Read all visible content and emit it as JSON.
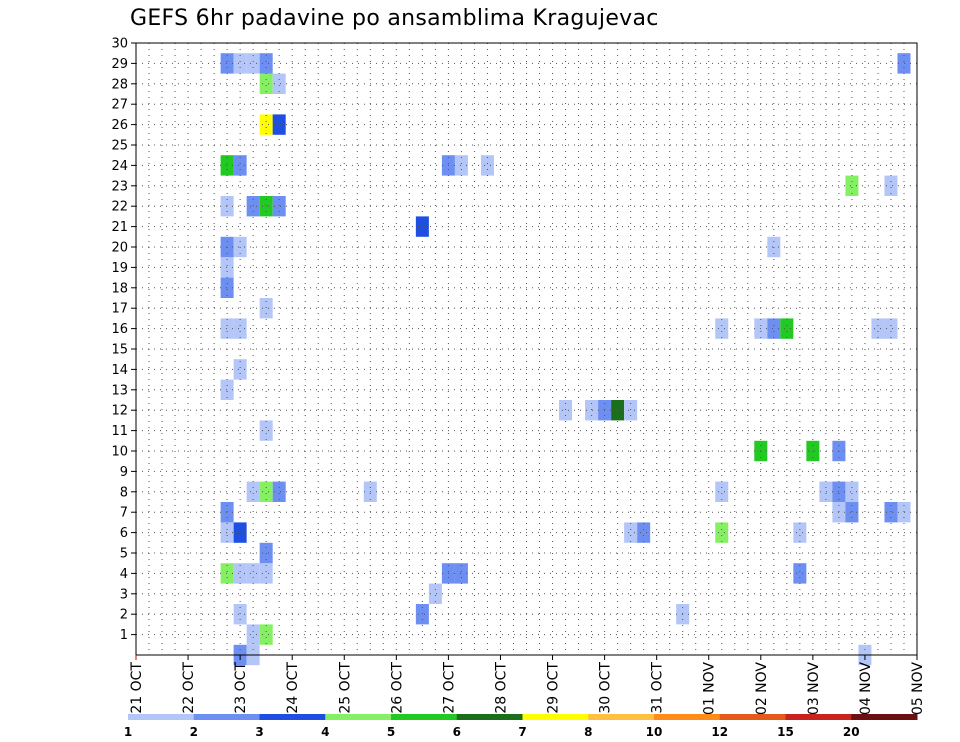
{
  "chart_data": {
    "type": "heatmap",
    "title": "GEFS 6hr padavine po ansamblima Kragujevac",
    "x_tick_labels": [
      "21 OCT",
      "22 OCT",
      "23 OCT",
      "24 OCT",
      "25 OCT",
      "26 OCT",
      "27 OCT",
      "28 OCT",
      "29 OCT",
      "30 OCT",
      "31 OCT",
      "01 NOV",
      "02 NOV",
      "03 NOV",
      "04 NOV",
      "05 NOV"
    ],
    "y_tick_labels": [
      "1",
      "2",
      "3",
      "4",
      "5",
      "6",
      "7",
      "8",
      "9",
      "10",
      "11",
      "12",
      "13",
      "14",
      "15",
      "16",
      "17",
      "18",
      "19",
      "20",
      "21",
      "22",
      "23",
      "24",
      "25",
      "26",
      "27",
      "28",
      "29",
      "30"
    ],
    "xlim": [
      0,
      60
    ],
    "ylim": [
      0,
      30
    ],
    "x_unit": "6-hour step starting 21 OCT 00Z",
    "y_unit": "ensemble member",
    "grid": true,
    "legend": {
      "placement": "bottom",
      "labels": [
        "1",
        "2",
        "3",
        "4",
        "5",
        "6",
        "7",
        "8",
        "10",
        "12",
        "15",
        "20"
      ],
      "colors": [
        "#b3c6f7",
        "#6d8ff1",
        "#1f4fe0",
        "#86f065",
        "#22c922",
        "#1b6f1b",
        "#ffff00",
        "#ffc040",
        "#ff8c1a",
        "#e55a1a",
        "#c8231e",
        "#6b0f10"
      ]
    },
    "color_levels": [
      {
        "min": 1,
        "color": "#b3c6f7"
      },
      {
        "min": 2,
        "color": "#6d8ff1"
      },
      {
        "min": 3,
        "color": "#1f4fe0"
      },
      {
        "min": 4,
        "color": "#86f065"
      },
      {
        "min": 5,
        "color": "#22c922"
      },
      {
        "min": 6,
        "color": "#1b6f1b"
      },
      {
        "min": 7,
        "color": "#ffff00"
      },
      {
        "min": 8,
        "color": "#ffc040"
      },
      {
        "min": 10,
        "color": "#ff8c1a"
      },
      {
        "min": 12,
        "color": "#e55a1a"
      },
      {
        "min": 15,
        "color": "#c8231e"
      },
      {
        "min": 20,
        "color": "#6b0f10"
      }
    ],
    "points": [
      {
        "x": 8,
        "y": 0,
        "v": 2.5
      },
      {
        "x": 9,
        "y": 0,
        "v": 1.5
      },
      {
        "x": 9,
        "y": 1,
        "v": 1.5
      },
      {
        "x": 10,
        "y": 1,
        "v": 4.5
      },
      {
        "x": 8,
        "y": 2,
        "v": 1.5
      },
      {
        "x": 22,
        "y": 2,
        "v": 2.5
      },
      {
        "x": 42,
        "y": 2,
        "v": 1.5
      },
      {
        "x": 23,
        "y": 3,
        "v": 1.5
      },
      {
        "x": 7,
        "y": 4,
        "v": 4.5
      },
      {
        "x": 8,
        "y": 4,
        "v": 1.5
      },
      {
        "x": 9,
        "y": 4,
        "v": 1.5
      },
      {
        "x": 10,
        "y": 4,
        "v": 1.5
      },
      {
        "x": 24,
        "y": 4,
        "v": 2.5
      },
      {
        "x": 25,
        "y": 4,
        "v": 2.5
      },
      {
        "x": 51,
        "y": 4,
        "v": 2.5
      },
      {
        "x": 10,
        "y": 5,
        "v": 2.5
      },
      {
        "x": 7,
        "y": 6,
        "v": 1.5
      },
      {
        "x": 8,
        "y": 6,
        "v": 3.5
      },
      {
        "x": 38,
        "y": 6,
        "v": 1.5
      },
      {
        "x": 39,
        "y": 6,
        "v": 2.5
      },
      {
        "x": 45,
        "y": 6,
        "v": 4.5
      },
      {
        "x": 51,
        "y": 6,
        "v": 1.5
      },
      {
        "x": 7,
        "y": 7,
        "v": 2.5
      },
      {
        "x": 54,
        "y": 7,
        "v": 1.5
      },
      {
        "x": 55,
        "y": 7,
        "v": 2.5
      },
      {
        "x": 58,
        "y": 7,
        "v": 2.5
      },
      {
        "x": 59,
        "y": 7,
        "v": 1.5
      },
      {
        "x": 9,
        "y": 8,
        "v": 1.5
      },
      {
        "x": 10,
        "y": 8,
        "v": 4.5
      },
      {
        "x": 11,
        "y": 8,
        "v": 2.5
      },
      {
        "x": 18,
        "y": 8,
        "v": 1.5
      },
      {
        "x": 45,
        "y": 8,
        "v": 1.5
      },
      {
        "x": 53,
        "y": 8,
        "v": 1.5
      },
      {
        "x": 54,
        "y": 8,
        "v": 2.5
      },
      {
        "x": 55,
        "y": 8,
        "v": 1.5
      },
      {
        "x": 48,
        "y": 10,
        "v": 5.5
      },
      {
        "x": 52,
        "y": 10,
        "v": 5.5
      },
      {
        "x": 54,
        "y": 10,
        "v": 2.5
      },
      {
        "x": 10,
        "y": 11,
        "v": 1.5
      },
      {
        "x": 33,
        "y": 12,
        "v": 1.5
      },
      {
        "x": 35,
        "y": 12,
        "v": 1.5
      },
      {
        "x": 36,
        "y": 12,
        "v": 2.5
      },
      {
        "x": 37,
        "y": 12,
        "v": 6.5
      },
      {
        "x": 38,
        "y": 12,
        "v": 1.5
      },
      {
        "x": 7,
        "y": 13,
        "v": 1.5
      },
      {
        "x": 8,
        "y": 14,
        "v": 1.5
      },
      {
        "x": 7,
        "y": 16,
        "v": 1.5
      },
      {
        "x": 8,
        "y": 16,
        "v": 1.5
      },
      {
        "x": 45,
        "y": 16,
        "v": 1.5
      },
      {
        "x": 48,
        "y": 16,
        "v": 1.5
      },
      {
        "x": 49,
        "y": 16,
        "v": 2.5
      },
      {
        "x": 50,
        "y": 16,
        "v": 5.5
      },
      {
        "x": 57,
        "y": 16,
        "v": 1.5
      },
      {
        "x": 58,
        "y": 16,
        "v": 1.5
      },
      {
        "x": 10,
        "y": 17,
        "v": 1.5
      },
      {
        "x": 7,
        "y": 18,
        "v": 2.5
      },
      {
        "x": 7,
        "y": 19,
        "v": 1.5
      },
      {
        "x": 7,
        "y": 20,
        "v": 2.5
      },
      {
        "x": 8,
        "y": 20,
        "v": 1.5
      },
      {
        "x": 49,
        "y": 20,
        "v": 1.5
      },
      {
        "x": 22,
        "y": 21,
        "v": 3.5
      },
      {
        "x": 7,
        "y": 22,
        "v": 1.5
      },
      {
        "x": 9,
        "y": 22,
        "v": 2.5
      },
      {
        "x": 10,
        "y": 22,
        "v": 5.5
      },
      {
        "x": 11,
        "y": 22,
        "v": 2.5
      },
      {
        "x": 55,
        "y": 23,
        "v": 4.5
      },
      {
        "x": 58,
        "y": 23,
        "v": 1.5
      },
      {
        "x": 7,
        "y": 24,
        "v": 5.5
      },
      {
        "x": 8,
        "y": 24,
        "v": 2.5
      },
      {
        "x": 24,
        "y": 24,
        "v": 2.5
      },
      {
        "x": 25,
        "y": 24,
        "v": 1.5
      },
      {
        "x": 27,
        "y": 24,
        "v": 1.5
      },
      {
        "x": 10,
        "y": 26,
        "v": 7.5
      },
      {
        "x": 11,
        "y": 26,
        "v": 3.5
      },
      {
        "x": 10,
        "y": 28,
        "v": 4.5
      },
      {
        "x": 11,
        "y": 28,
        "v": 1.5
      },
      {
        "x": 7,
        "y": 29,
        "v": 2.5
      },
      {
        "x": 8,
        "y": 29,
        "v": 1.5
      },
      {
        "x": 9,
        "y": 29,
        "v": 1.5
      },
      {
        "x": 10,
        "y": 29,
        "v": 2.5
      },
      {
        "x": 59,
        "y": 29,
        "v": 2.5
      },
      {
        "x": 56,
        "y": 0,
        "v": 1.5
      }
    ]
  }
}
